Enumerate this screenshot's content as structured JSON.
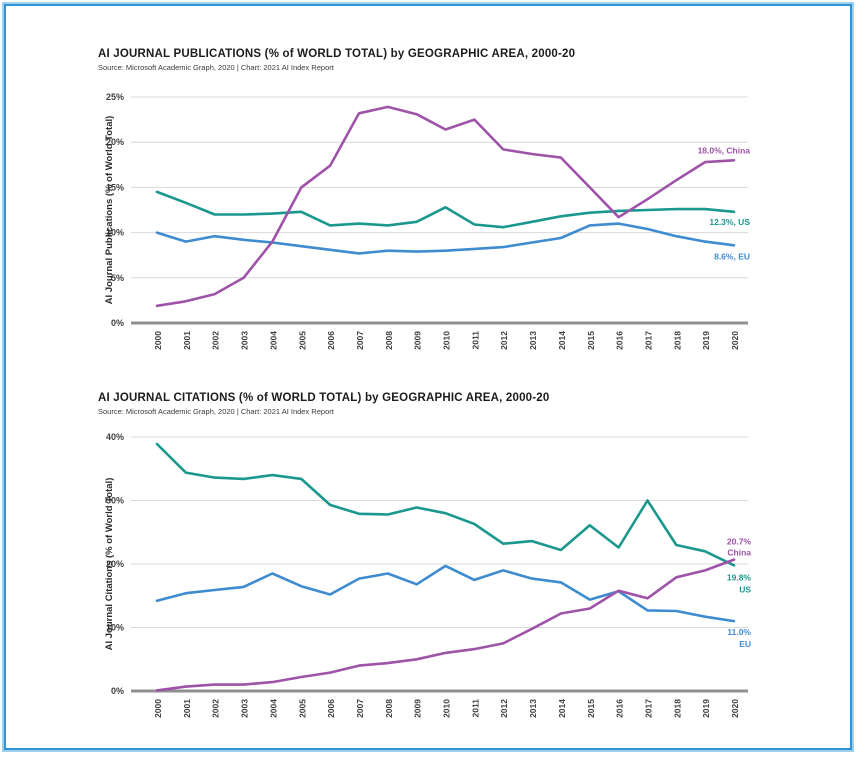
{
  "page": {
    "frame_color": "#2e93d5",
    "frame_halo_color": "#9fd0ec",
    "background": "#ffffff"
  },
  "chart_data": [
    {
      "type": "line",
      "title": "AI JOURNAL PUBLICATIONS (% of WORLD TOTAL) by GEOGRAPHIC AREA, 2000-20",
      "source": "Source: Microsoft Academic Graph, 2020 | Chart: 2021 AI Index Report",
      "xlabel": "",
      "ylabel": "AI Journal Publications (% of World Total)",
      "ylim": [
        0,
        25
      ],
      "yticks": [
        0,
        5,
        10,
        15,
        20,
        25
      ],
      "ytick_labels": [
        "0%",
        "5%",
        "10%",
        "15%",
        "20%",
        "25%"
      ],
      "grid": "horizontal",
      "legend_position": "end-of-line labels",
      "categories": [
        "2000",
        "2001",
        "2002",
        "2003",
        "2004",
        "2005",
        "2006",
        "2007",
        "2008",
        "2009",
        "2010",
        "2011",
        "2012",
        "2013",
        "2014",
        "2015",
        "2016",
        "2017",
        "2018",
        "2019",
        "2020"
      ],
      "series": [
        {
          "name": "US",
          "color": "#1a988e",
          "values": [
            14.5,
            13.3,
            12.0,
            12.0,
            12.1,
            12.3,
            10.8,
            11.0,
            10.8,
            11.2,
            12.8,
            10.9,
            10.6,
            11.2,
            11.8,
            12.2,
            12.4,
            12.5,
            12.6,
            12.6,
            12.3
          ],
          "end_label_lines": [
            "12.3%, US"
          ],
          "end_label_dy": [
            13
          ]
        },
        {
          "name": "EU",
          "color": "#3e8bd0",
          "values": [
            10.0,
            9.0,
            9.6,
            9.2,
            8.9,
            8.5,
            8.1,
            7.7,
            8.0,
            7.9,
            8.0,
            8.2,
            8.4,
            8.9,
            9.4,
            10.8,
            11.0,
            10.4,
            9.6,
            9.0,
            8.6
          ],
          "end_label_lines": [
            "8.6%, EU"
          ],
          "end_label_dy": [
            14
          ]
        },
        {
          "name": "China",
          "color": "#9e53a8",
          "values": [
            1.9,
            2.4,
            3.2,
            5.0,
            9.0,
            15.0,
            17.4,
            23.2,
            23.9,
            23.1,
            21.4,
            22.5,
            19.2,
            18.7,
            18.3,
            15.0,
            11.7,
            13.7,
            15.8,
            17.8,
            18.0
          ],
          "end_label_lines": [
            "18.0%, China"
          ],
          "end_label_dy": [
            -7
          ]
        }
      ]
    },
    {
      "type": "line",
      "title": "AI JOURNAL CITATIONS (% of WORLD TOTAL) by GEOGRAPHIC AREA, 2000-20",
      "source": "Source: Microsoft Academic Graph, 2020 | Chart: 2021 AI Index Report",
      "xlabel": "",
      "ylabel": "AI Journal Citations (% of World Total)",
      "ylim": [
        0,
        40
      ],
      "yticks": [
        0,
        10,
        20,
        30,
        40
      ],
      "ytick_labels": [
        "0%",
        "10%",
        "20%",
        "30%",
        "40%"
      ],
      "grid": "horizontal",
      "legend_position": "end-of-line labels",
      "categories": [
        "2000",
        "2001",
        "2002",
        "2003",
        "2004",
        "2005",
        "2006",
        "2007",
        "2008",
        "2009",
        "2010",
        "2011",
        "2012",
        "2013",
        "2014",
        "2015",
        "2016",
        "2017",
        "2018",
        "2019",
        "2020"
      ],
      "series": [
        {
          "name": "US",
          "color": "#1a988e",
          "values": [
            38.9,
            34.4,
            33.6,
            33.4,
            34.0,
            33.4,
            29.3,
            27.9,
            27.8,
            28.9,
            28.0,
            26.3,
            23.2,
            23.6,
            22.2,
            26.1,
            22.6,
            30.0,
            23.0,
            22.0,
            19.8
          ],
          "end_label_lines": [
            "19.8%",
            "US"
          ],
          "end_label_dy": [
            15,
            27
          ]
        },
        {
          "name": "EU",
          "color": "#3e8bd0",
          "values": [
            14.2,
            15.4,
            15.9,
            16.4,
            18.5,
            16.5,
            15.2,
            17.7,
            18.5,
            16.8,
            19.7,
            17.5,
            19.0,
            17.7,
            17.1,
            14.4,
            15.7,
            12.7,
            12.6,
            11.7,
            11.0
          ],
          "end_label_lines": [
            "11.0%",
            "EU"
          ],
          "end_label_dy": [
            14,
            26
          ]
        },
        {
          "name": "China",
          "color": "#9e53a8",
          "values": [
            0.1,
            0.7,
            1.0,
            1.0,
            1.4,
            2.2,
            2.9,
            4.0,
            4.4,
            5.0,
            6.0,
            6.6,
            7.5,
            9.8,
            12.2,
            13.0,
            15.8,
            14.6,
            17.9,
            19.0,
            20.7
          ],
          "end_label_lines": [
            "20.7%",
            "China"
          ],
          "end_label_dy": [
            -15,
            -4
          ]
        }
      ]
    }
  ]
}
